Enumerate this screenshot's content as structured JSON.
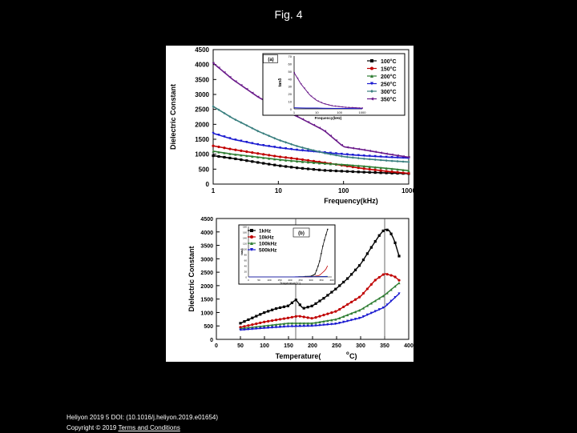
{
  "page": {
    "title": "Fig. 4"
  },
  "footer": {
    "citation": "Heliyon 2019 5 DOI: (10.1016/j.heliyon.2019.e01654)",
    "copyright": "Copyright © 2019 ",
    "link": "Terms and Conditions"
  },
  "chart_data": [
    {
      "type": "line",
      "panel": "(a)",
      "xscale": "log",
      "xlabel": "Frequency(kHz)",
      "ylabel": "Dielectric Constant",
      "xlim": [
        1,
        1000
      ],
      "ylim": [
        0,
        4500
      ],
      "xticks": [
        1,
        10,
        100,
        1000
      ],
      "xtick_labels": [
        "1",
        "10",
        "100",
        "1000"
      ],
      "yticks": [
        0,
        500,
        1000,
        1500,
        2000,
        2500,
        3000,
        3500,
        4000,
        4500
      ],
      "x": [
        1,
        2,
        5,
        10,
        20,
        50,
        100,
        200,
        500,
        1000
      ],
      "series": [
        {
          "name": "100°C",
          "color": "#000000",
          "values": [
            950,
            860,
            720,
            620,
            540,
            460,
            430,
            400,
            370,
            350
          ]
        },
        {
          "name": "150°C",
          "color": "#c00000",
          "values": [
            1280,
            1160,
            1020,
            920,
            840,
            720,
            620,
            520,
            420,
            360
          ]
        },
        {
          "name": "200°C",
          "color": "#2e7d32",
          "values": [
            1100,
            1000,
            900,
            820,
            760,
            690,
            650,
            600,
            520,
            450
          ]
        },
        {
          "name": "250°C",
          "color": "#1a1ad0",
          "values": [
            1700,
            1500,
            1320,
            1220,
            1140,
            1060,
            1000,
            950,
            900,
            870
          ]
        },
        {
          "name": "300°C",
          "color": "#3a7f7f",
          "values": [
            2600,
            2200,
            1760,
            1480,
            1260,
            1040,
            920,
            850,
            780,
            740
          ]
        },
        {
          "name": "350°C",
          "color": "#6a1a8a",
          "values": [
            4050,
            3500,
            2900,
            2550,
            2250,
            1800,
            1250,
            1150,
            1000,
            900
          ]
        }
      ],
      "inset": {
        "ylabel": "tanδ",
        "xlabel": "Frequency(kHz)",
        "yticks": [
          0,
          10,
          20,
          30,
          40,
          50,
          60,
          70
        ],
        "xticks": [
          1,
          10,
          100,
          1000
        ],
        "xtick_labels": [
          "1",
          "10",
          "100",
          "1000"
        ],
        "x": [
          1,
          2,
          5,
          10,
          20,
          50,
          100,
          200,
          500,
          1000
        ],
        "series_350": [
          48,
          33,
          18,
          11,
          7,
          4,
          3,
          2,
          1.5,
          1
        ],
        "series_low": [
          1.5,
          1.2,
          1,
          1,
          0.8,
          0.6,
          0.5,
          0.5,
          0.4,
          0.4
        ]
      }
    },
    {
      "type": "line",
      "panel": "(b)",
      "xlabel": "Temperature(°C)",
      "xlabel_main": "Temperature(",
      "xlabel_unit": "C)",
      "xlabel_degree": "o",
      "ylabel": "Dielectric Constant",
      "xlim": [
        0,
        400
      ],
      "ylim": [
        0,
        4500
      ],
      "xticks": [
        0,
        50,
        100,
        150,
        200,
        250,
        300,
        350,
        400
      ],
      "yticks": [
        0,
        500,
        1000,
        1500,
        2000,
        2500,
        3000,
        3500,
        4000,
        4500
      ],
      "series": [
        {
          "name": "1kHz",
          "color": "#000000",
          "x": [
            50,
            75,
            100,
            125,
            150,
            165,
            180,
            200,
            225,
            250,
            275,
            300,
            325,
            340,
            350,
            360,
            370,
            380
          ],
          "values": [
            600,
            800,
            1000,
            1150,
            1250,
            1480,
            1150,
            1250,
            1550,
            1900,
            2300,
            2800,
            3500,
            3900,
            4100,
            4050,
            3700,
            3100
          ]
        },
        {
          "name": "10kHz",
          "color": "#c00000",
          "x": [
            50,
            100,
            150,
            170,
            200,
            250,
            300,
            330,
            350,
            370,
            380
          ],
          "values": [
            450,
            650,
            800,
            870,
            780,
            1050,
            1600,
            2200,
            2450,
            2350,
            2200
          ]
        },
        {
          "name": "100kHz",
          "color": "#2e7d32",
          "x": [
            50,
            100,
            150,
            200,
            250,
            300,
            350,
            380
          ],
          "values": [
            400,
            500,
            600,
            600,
            750,
            1100,
            1650,
            2100
          ]
        },
        {
          "name": "500kHz",
          "color": "#1a1ad0",
          "x": [
            50,
            100,
            150,
            200,
            250,
            300,
            350,
            380
          ],
          "values": [
            350,
            420,
            480,
            500,
            580,
            800,
            1200,
            1700
          ]
        }
      ],
      "vlines": [
        165,
        350
      ],
      "inset": {
        "ylabel": "tanδ",
        "xlabel": "Temperature(°C)",
        "xticks": [
          0,
          50,
          100,
          150,
          200,
          250,
          300,
          350,
          400
        ],
        "yticks": [
          0,
          20,
          40,
          60,
          80,
          100,
          120,
          140,
          160,
          180
        ],
        "series": [
          {
            "name": "1kHz",
            "color": "#000000",
            "x": [
              0,
              100,
              200,
              300,
              320,
              340,
              360,
              380
            ],
            "values": [
              0,
              0,
              0,
              2,
              10,
              50,
              120,
              170
            ]
          },
          {
            "name": "10kHz",
            "color": "#c00000",
            "x": [
              0,
              100,
              200,
              300,
              340,
              370,
              380
            ],
            "values": [
              0,
              0,
              0,
              0,
              5,
              25,
              40
            ]
          },
          {
            "name": "100kHz",
            "color": "#2e7d32",
            "x": [
              0,
              200,
              380
            ],
            "values": [
              0,
              0,
              2
            ]
          },
          {
            "name": "500kHz",
            "color": "#1a1ad0",
            "x": [
              0,
              200,
              380
            ],
            "values": [
              0,
              0,
              1
            ]
          }
        ]
      }
    }
  ]
}
